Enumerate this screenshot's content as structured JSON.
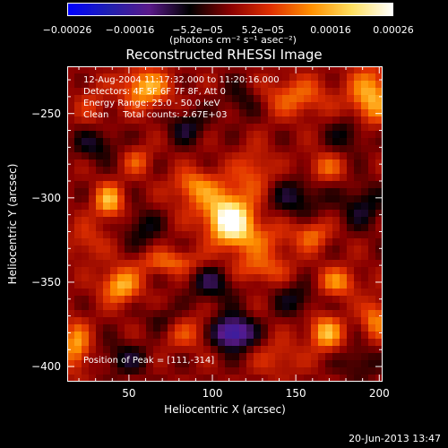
{
  "chart_data": {
    "type": "heatmap",
    "title": "Reconstructed RHESSI Image",
    "xlabel": "Heliocentric X (arcsec)",
    "ylabel": "Heliocentric Y (arcsec)",
    "xlim": [
      13,
      202
    ],
    "ylim": [
      -409,
      -222
    ],
    "xticks": [
      "50",
      "100",
      "150",
      "200"
    ],
    "xtick_values": [
      50,
      100,
      150,
      200
    ],
    "yticks": [
      "-250",
      "-300",
      "-350",
      "-400"
    ],
    "ytick_values": [
      -250,
      -300,
      -350,
      -400
    ],
    "colorbar": {
      "ticks": [
        "-0.00026",
        "-0.00016",
        "-5.2e-05",
        "5.2e-05",
        "0.00016",
        "0.00026"
      ],
      "tick_values": [
        -0.00026,
        -0.00016,
        -5.2e-05,
        5.2e-05,
        0.00016,
        0.00026
      ],
      "range": [
        -0.00026,
        0.00026
      ],
      "unit": "(photons cm⁻² s⁻¹ asec⁻²)",
      "colormap": [
        "#0000ff",
        "#2020b0",
        "#5a1a8a",
        "#000000",
        "#8a0000",
        "#e03000",
        "#ff9000",
        "#ffe060",
        "#ffffff"
      ]
    },
    "annotations": [
      "12-Aug-2004 11:17:32.000 to 11:20:16.000",
      "Detectors: 4F 5F 6F 7F 8F, Att 0",
      "Energy Range: 25.0 - 50.0 keV",
      "Clean     Total counts: 2.67E+03"
    ],
    "peak_label": "Position of Peak = [111,-314]",
    "peak": {
      "x": 111,
      "y": -314,
      "value": 0.00026
    },
    "sources": [
      {
        "x": 111,
        "y": -314,
        "sx": 9,
        "sy": 9,
        "v": 0.00026
      },
      {
        "x": 100,
        "y": -300,
        "sx": 14,
        "sy": 10,
        "v": 9e-05
      },
      {
        "x": 125,
        "y": -285,
        "sx": 8,
        "sy": 10,
        "v": 8e-05
      },
      {
        "x": 88,
        "y": -292,
        "sx": 8,
        "sy": 6,
        "v": 8e-05
      },
      {
        "x": 128,
        "y": -325,
        "sx": 14,
        "sy": 8,
        "v": 8e-05
      },
      {
        "x": 60,
        "y": -235,
        "sx": 10,
        "sy": 8,
        "v": 0.00016
      },
      {
        "x": 150,
        "y": -240,
        "sx": 14,
        "sy": 8,
        "v": 0.0001
      },
      {
        "x": 195,
        "y": -240,
        "sx": 9,
        "sy": 12,
        "v": 0.00016
      },
      {
        "x": 38,
        "y": -302,
        "sx": 6,
        "sy": 7,
        "v": 0.00016
      },
      {
        "x": 55,
        "y": -278,
        "sx": 6,
        "sy": 6,
        "v": 8e-05
      },
      {
        "x": 168,
        "y": -282,
        "sx": 8,
        "sy": 6,
        "v": 9e-05
      },
      {
        "x": 160,
        "y": -322,
        "sx": 7,
        "sy": 6,
        "v": 0.0001
      },
      {
        "x": 45,
        "y": -352,
        "sx": 8,
        "sy": 7,
        "v": 0.00016
      },
      {
        "x": 75,
        "y": -338,
        "sx": 14,
        "sy": 5,
        "v": 0.0001
      },
      {
        "x": 128,
        "y": -342,
        "sx": 12,
        "sy": 6,
        "v": 9e-05
      },
      {
        "x": 175,
        "y": -350,
        "sx": 8,
        "sy": 6,
        "v": 0.00012
      },
      {
        "x": 168,
        "y": -380,
        "sx": 7,
        "sy": 7,
        "v": 0.00016
      },
      {
        "x": 198,
        "y": -372,
        "sx": 6,
        "sy": 8,
        "v": 0.00012
      },
      {
        "x": 18,
        "y": -388,
        "sx": 6,
        "sy": 10,
        "v": 0.00014
      },
      {
        "x": 25,
        "y": -326,
        "sx": 8,
        "sy": 8,
        "v": 6e-05
      },
      {
        "x": 85,
        "y": -380,
        "sx": 12,
        "sy": 7,
        "v": 7e-05
      },
      {
        "x": 140,
        "y": -395,
        "sx": 10,
        "sy": 8,
        "v": 6e-05
      },
      {
        "x": 28,
        "y": -245,
        "sx": 7,
        "sy": 10,
        "v": 5e-05
      },
      {
        "x": 112,
        "y": -380,
        "sx": 9,
        "sy": 7,
        "v": -0.0002
      },
      {
        "x": 30,
        "y": -268,
        "sx": 9,
        "sy": 7,
        "v": -8e-05
      },
      {
        "x": 85,
        "y": -258,
        "sx": 8,
        "sy": 7,
        "v": -8e-05
      },
      {
        "x": 150,
        "y": -300,
        "sx": 12,
        "sy": 8,
        "v": -8e-05
      },
      {
        "x": 182,
        "y": -262,
        "sx": 9,
        "sy": 8,
        "v": -7e-05
      },
      {
        "x": 190,
        "y": -305,
        "sx": 9,
        "sy": 9,
        "v": -8e-05
      },
      {
        "x": 58,
        "y": -318,
        "sx": 8,
        "sy": 8,
        "v": -7e-05
      },
      {
        "x": 100,
        "y": -350,
        "sx": 10,
        "sy": 8,
        "v": -9e-05
      },
      {
        "x": 150,
        "y": -360,
        "sx": 9,
        "sy": 7,
        "v": -7e-05
      },
      {
        "x": 48,
        "y": -395,
        "sx": 10,
        "sy": 7,
        "v": -7e-05
      },
      {
        "x": 188,
        "y": -398,
        "sx": 8,
        "sy": 7,
        "v": -6e-05
      },
      {
        "x": 118,
        "y": -242,
        "sx": 8,
        "sy": 8,
        "v": -6e-05
      },
      {
        "x": 70,
        "y": -372,
        "sx": 7,
        "sy": 6,
        "v": -6e-05
      }
    ]
  },
  "footer": {
    "date": "20-Jun-2013 13:47"
  }
}
